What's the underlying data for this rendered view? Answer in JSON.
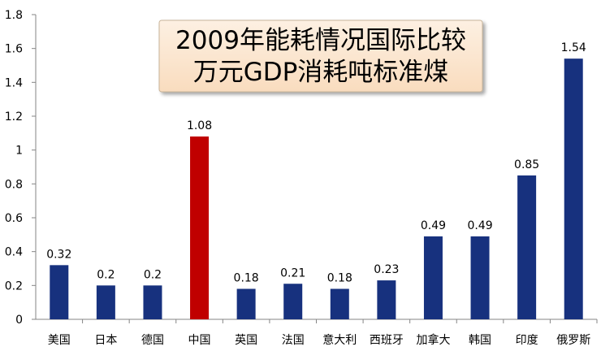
{
  "chart_data": {
    "type": "bar",
    "title": [
      "2009年能耗情况国际比较",
      "万元GDP消耗吨标准煤"
    ],
    "xlabel": "",
    "ylabel": "",
    "ylim": [
      0,
      1.8
    ],
    "yticks": [
      "0",
      "0.2",
      "0.4",
      "0.6",
      "0.8",
      "1",
      "1.2",
      "1.4",
      "1.6",
      "1.8"
    ],
    "grid": false,
    "legend": "none",
    "categories": [
      "美国",
      "日本",
      "德国",
      "中国",
      "英国",
      "法国",
      "意大利",
      "西班牙",
      "加拿大",
      "韩国",
      "印度",
      "俄罗斯"
    ],
    "values": [
      0.32,
      0.2,
      0.2,
      1.08,
      0.18,
      0.21,
      0.18,
      0.23,
      0.49,
      0.49,
      0.85,
      1.54
    ],
    "data_labels": [
      "0.32",
      "0.2",
      "0.2",
      "1.08",
      "0.18",
      "0.21",
      "0.18",
      "0.23",
      "0.49",
      "0.49",
      "0.85",
      "1.54"
    ],
    "colors": {
      "default_bar": "#17317e",
      "highlight_bar": "#c00000",
      "highlight_category": "中国",
      "title_box_fill": "#fbe6cf",
      "title_box_border": "#c8b49a"
    }
  }
}
